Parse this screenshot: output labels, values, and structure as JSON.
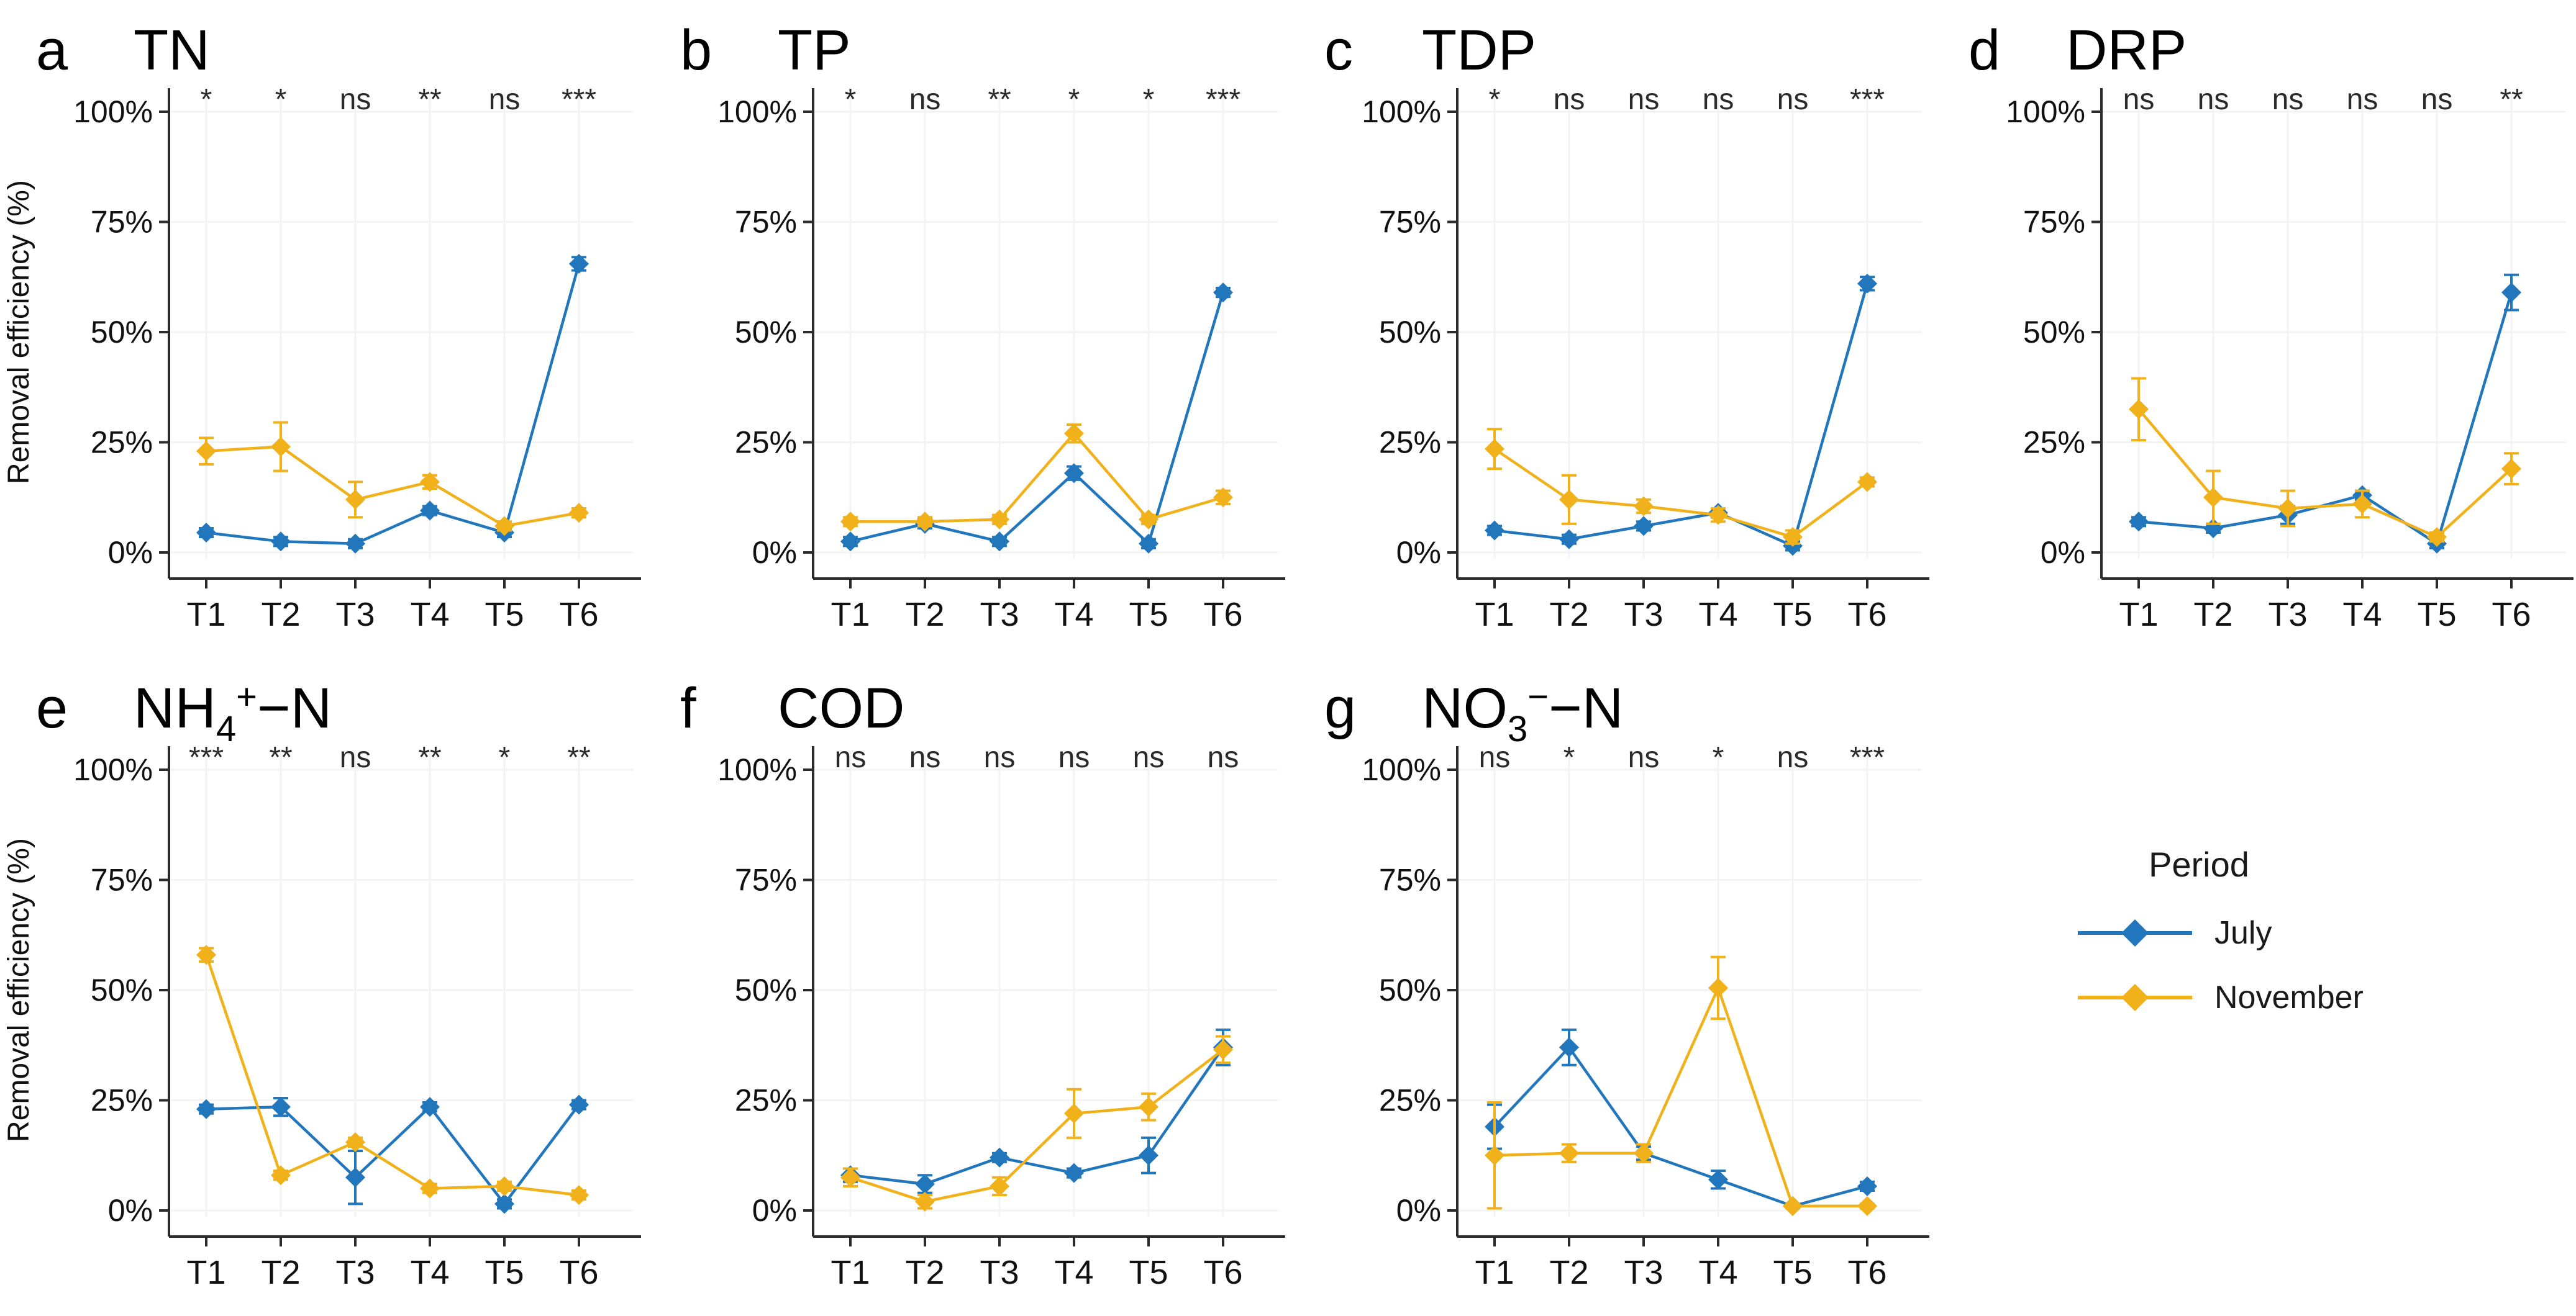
{
  "figure": {
    "background": "#ffffff",
    "axis_color": "#2b2b2b",
    "text_color": "#111111",
    "sig_color": "#2a2a2a",
    "grid_color": "#f3f3f3"
  },
  "chart_data": {
    "type": "line",
    "categories": [
      "T1",
      "T2",
      "T3",
      "T4",
      "T5",
      "T6"
    ],
    "ylim": [
      0,
      100
    ],
    "ytick_values": [
      0,
      25,
      50,
      75,
      100
    ],
    "ytick_labels": [
      "0%",
      "25%",
      "50%",
      "75%",
      "100%"
    ],
    "ylabel": "Removal efficiency (%)",
    "grid": "faint",
    "legend": {
      "title": "Period",
      "position": "right-of-bottom-row",
      "entries": [
        {
          "name": "July",
          "color": "#2176bc"
        },
        {
          "name": "November",
          "color": "#f0b11a"
        }
      ]
    },
    "panels": [
      {
        "letter": "a",
        "title": "TN",
        "title_parts": [
          {
            "t": "TN"
          }
        ],
        "show_ylabel": true,
        "significance": [
          "*",
          "*",
          "ns",
          "**",
          "ns",
          "***"
        ],
        "series": [
          {
            "name": "July",
            "values": [
              4.5,
              2.5,
              2,
              9.5,
              4.5,
              65.5
            ],
            "errors": [
              1,
              1,
              1,
              1,
              1,
              1.5
            ]
          },
          {
            "name": "November",
            "values": [
              23,
              24,
              12,
              16,
              6,
              9
            ],
            "errors": [
              3,
              5.5,
              4,
              1.5,
              1,
              1
            ]
          }
        ]
      },
      {
        "letter": "b",
        "title": "TP",
        "title_parts": [
          {
            "t": "TP"
          }
        ],
        "show_ylabel": false,
        "significance": [
          "*",
          "ns",
          "**",
          "*",
          "*",
          "***"
        ],
        "series": [
          {
            "name": "July",
            "values": [
              2.5,
              6.5,
              2.5,
              18,
              2,
              59
            ],
            "errors": [
              1,
              1,
              1,
              1.5,
              1,
              1
            ]
          },
          {
            "name": "November",
            "values": [
              7,
              7,
              7.5,
              27,
              7.5,
              12.5
            ],
            "errors": [
              1,
              1,
              1,
              2,
              1,
              1.5
            ]
          }
        ]
      },
      {
        "letter": "c",
        "title": "TDP",
        "title_parts": [
          {
            "t": "TDP"
          }
        ],
        "show_ylabel": false,
        "significance": [
          "*",
          "ns",
          "ns",
          "ns",
          "ns",
          "***"
        ],
        "series": [
          {
            "name": "July",
            "values": [
              5,
              3,
              6,
              9,
              1.5,
              61
            ],
            "errors": [
              1,
              1,
              1,
              1,
              1,
              1.5
            ]
          },
          {
            "name": "November",
            "values": [
              23.5,
              12,
              10.5,
              8.5,
              3.5,
              16
            ],
            "errors": [
              4.5,
              5.5,
              1.5,
              1.5,
              1.5,
              1
            ]
          }
        ]
      },
      {
        "letter": "d",
        "title": "DRP",
        "title_parts": [
          {
            "t": "DRP"
          }
        ],
        "show_ylabel": false,
        "significance": [
          "ns",
          "ns",
          "ns",
          "ns",
          "ns",
          "**"
        ],
        "series": [
          {
            "name": "July",
            "values": [
              7,
              5.5,
              8.5,
              13,
              2,
              59
            ],
            "errors": [
              1,
              1,
              2,
              1,
              1,
              4
            ]
          },
          {
            "name": "November",
            "values": [
              32.5,
              12.5,
              10,
              11,
              3.5,
              19
            ],
            "errors": [
              7,
              6,
              4,
              3,
              1,
              3.5
            ]
          }
        ]
      },
      {
        "letter": "e",
        "title": "NH4+-N",
        "title_parts": [
          {
            "t": "NH"
          },
          {
            "t": "4",
            "style": "sub"
          },
          {
            "t": "+",
            "style": "sup"
          },
          {
            "t": "−N"
          }
        ],
        "show_ylabel": true,
        "significance": [
          "***",
          "**",
          "ns",
          "**",
          "*",
          "**"
        ],
        "series": [
          {
            "name": "July",
            "values": [
              23,
              23.5,
              7.5,
              23.5,
              1.5,
              24
            ],
            "errors": [
              1,
              2,
              6,
              1,
              1,
              1
            ]
          },
          {
            "name": "November",
            "values": [
              58,
              8,
              15.5,
              5,
              5.5,
              3.5
            ],
            "errors": [
              1.5,
              1,
              1,
              1,
              1,
              1
            ]
          }
        ]
      },
      {
        "letter": "f",
        "title": "COD",
        "title_parts": [
          {
            "t": "COD"
          }
        ],
        "show_ylabel": false,
        "significance": [
          "ns",
          "ns",
          "ns",
          "ns",
          "ns",
          "ns"
        ],
        "series": [
          {
            "name": "July",
            "values": [
              8,
              6,
              12,
              8.5,
              12.5,
              37
            ],
            "errors": [
              1.5,
              2,
              1,
              1,
              4,
              4
            ]
          },
          {
            "name": "November",
            "values": [
              7.5,
              2,
              5.5,
              22,
              23.5,
              36.5
            ],
            "errors": [
              2,
              1.5,
              2,
              5.5,
              3,
              3
            ]
          }
        ]
      },
      {
        "letter": "g",
        "title": "NO3--N",
        "title_parts": [
          {
            "t": "NO"
          },
          {
            "t": "3",
            "style": "sub"
          },
          {
            "t": "−",
            "style": "sup"
          },
          {
            "t": "−N"
          }
        ],
        "show_ylabel": false,
        "significance": [
          "ns",
          "*",
          "ns",
          "*",
          "ns",
          "***"
        ],
        "series": [
          {
            "name": "July",
            "values": [
              19,
              37,
              13,
              7,
              1,
              5.5
            ],
            "errors": [
              5,
              4,
              1.5,
              2,
              0.5,
              1
            ]
          },
          {
            "name": "November",
            "values": [
              12.5,
              13,
              13,
              50.5,
              1,
              1
            ],
            "errors": [
              12,
              2,
              2,
              7,
              0.5,
              0.5
            ]
          }
        ]
      }
    ]
  }
}
